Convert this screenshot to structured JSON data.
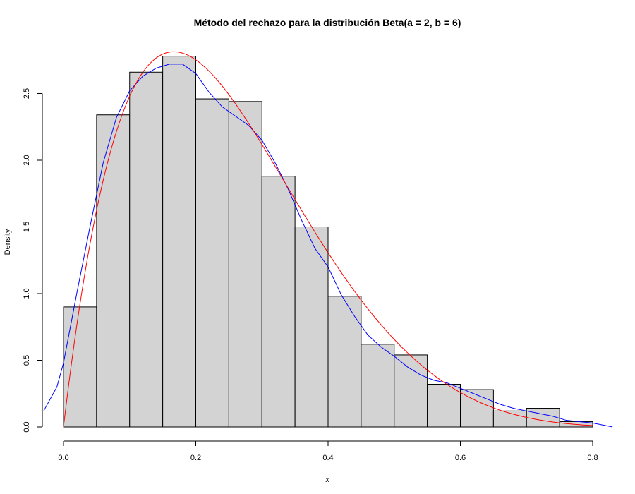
{
  "chart_data": {
    "type": "bar",
    "title": "Método del rechazo para la distribución Beta(a = 2, b = 6)",
    "xlabel": "x",
    "ylabel": "Density",
    "xlim": [
      0,
      0.83
    ],
    "ylim": [
      0,
      2.8
    ],
    "x_ticks": [
      "0.0",
      "0.2",
      "0.4",
      "0.6",
      "0.8"
    ],
    "y_ticks": [
      "0.0",
      "0.5",
      "1.0",
      "1.5",
      "2.0",
      "2.5"
    ],
    "grid": false,
    "legend": "none",
    "histogram": {
      "fill_color": "#d3d3d3",
      "edge_color": "#000000",
      "bins": [
        {
          "x0": 0.0,
          "x1": 0.05,
          "density": 0.9
        },
        {
          "x0": 0.05,
          "x1": 0.1,
          "density": 2.34
        },
        {
          "x0": 0.1,
          "x1": 0.15,
          "density": 2.66
        },
        {
          "x0": 0.15,
          "x1": 0.2,
          "density": 2.78
        },
        {
          "x0": 0.2,
          "x1": 0.25,
          "density": 2.46
        },
        {
          "x0": 0.25,
          "x1": 0.3,
          "density": 2.44
        },
        {
          "x0": 0.3,
          "x1": 0.35,
          "density": 1.88
        },
        {
          "x0": 0.35,
          "x1": 0.4,
          "density": 1.5
        },
        {
          "x0": 0.4,
          "x1": 0.45,
          "density": 0.98
        },
        {
          "x0": 0.45,
          "x1": 0.5,
          "density": 0.62
        },
        {
          "x0": 0.5,
          "x1": 0.55,
          "density": 0.54
        },
        {
          "x0": 0.55,
          "x1": 0.6,
          "density": 0.32
        },
        {
          "x0": 0.6,
          "x1": 0.65,
          "density": 0.28
        },
        {
          "x0": 0.65,
          "x1": 0.7,
          "density": 0.12
        },
        {
          "x0": 0.7,
          "x1": 0.75,
          "density": 0.14
        },
        {
          "x0": 0.75,
          "x1": 0.8,
          "density": 0.04
        }
      ]
    },
    "series": [
      {
        "type": "line",
        "color": "#0000ff",
        "x": [
          -0.03,
          -0.01,
          0.0,
          0.02,
          0.04,
          0.06,
          0.08,
          0.1,
          0.12,
          0.14,
          0.16,
          0.18,
          0.2,
          0.22,
          0.24,
          0.26,
          0.28,
          0.3,
          0.32,
          0.34,
          0.36,
          0.38,
          0.4,
          0.42,
          0.44,
          0.46,
          0.48,
          0.5,
          0.52,
          0.54,
          0.56,
          0.58,
          0.6,
          0.62,
          0.64,
          0.66,
          0.68,
          0.7,
          0.72,
          0.74,
          0.76,
          0.78,
          0.8,
          0.82,
          0.83
        ],
        "y": [
          0.12,
          0.3,
          0.48,
          1.0,
          1.5,
          1.98,
          2.32,
          2.52,
          2.63,
          2.69,
          2.72,
          2.72,
          2.65,
          2.51,
          2.4,
          2.33,
          2.26,
          2.15,
          1.98,
          1.78,
          1.55,
          1.34,
          1.2,
          0.99,
          0.83,
          0.69,
          0.6,
          0.53,
          0.45,
          0.39,
          0.35,
          0.33,
          0.29,
          0.25,
          0.21,
          0.17,
          0.14,
          0.12,
          0.1,
          0.08,
          0.05,
          0.04,
          0.03,
          0.01,
          0.0
        ]
      },
      {
        "type": "line",
        "color": "#ff0000",
        "function": "42*x*(1-x)^5",
        "x_range": [
          0,
          0.8
        ]
      }
    ]
  }
}
